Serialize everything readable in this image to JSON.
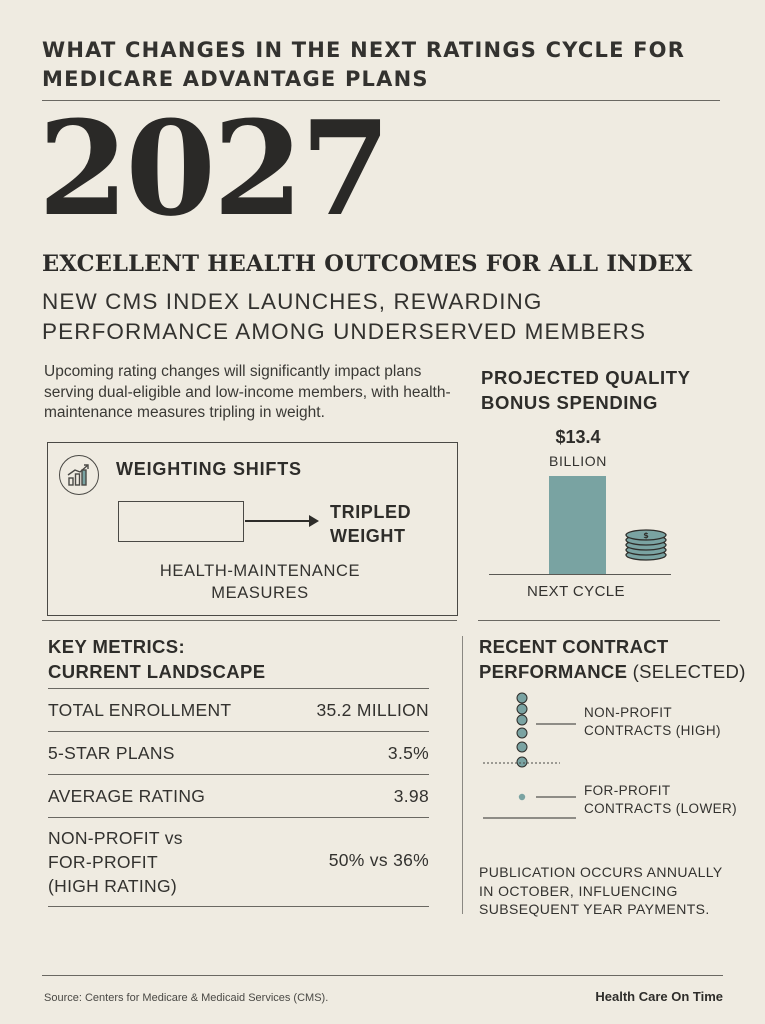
{
  "header": {
    "kicker": "WHAT CHANGES IN THE NEXT RATINGS CYCLE FOR MEDICARE ADVANTAGE PLANS",
    "year": "2027",
    "index_title": "EXCELLENT HEALTH OUTCOMES FOR ALL INDEX",
    "subhead": "NEW CMS INDEX LAUNCHES, REWARDING PERFORMANCE AMONG UNDERSERVED MEMBERS"
  },
  "intro": "Upcoming rating changes will significantly impact plans serving dual-eligible and low-income members, with health-maintenance measures tripling in weight.",
  "weighting": {
    "icon": "growth-chart-icon",
    "title": "WEIGHTING SHIFTS",
    "result_line1": "TRIPLED",
    "result_line2": "WEIGHT",
    "measure_line1": "HEALTH-MAINTENANCE",
    "measure_line2": "MEASURES"
  },
  "bonus": {
    "title_line1": "PROJECTED QUALITY",
    "title_line2": "BONUS SPENDING",
    "value_label": "$13.4",
    "unit_label": "BILLION",
    "category": "NEXT CYCLE",
    "icon": "coin-stack-icon"
  },
  "chart_data": {
    "type": "bar",
    "categories": [
      "NEXT CYCLE"
    ],
    "values": [
      13.4
    ],
    "title": "PROJECTED QUALITY BONUS SPENDING",
    "ylabel": "",
    "unit": "BILLION"
  },
  "metrics": {
    "title_line1": "KEY METRICS:",
    "title_line2": "CURRENT LANDSCAPE",
    "rows": [
      {
        "label": "TOTAL ENROLLMENT",
        "value": "35.2 MILLION"
      },
      {
        "label": "5-STAR PLANS",
        "value": "3.5%"
      },
      {
        "label": "AVERAGE RATING",
        "value": "3.98"
      },
      {
        "label_line1": "NON-PROFIT vs",
        "label_line2": "FOR-PROFIT",
        "label_line3": "(HIGH RATING)",
        "value": "50% vs 36%"
      }
    ]
  },
  "contracts": {
    "title_bold_line1": "RECENT CONTRACT",
    "title_bold_line2": "PERFORMANCE",
    "title_suffix": " (SELECTED)",
    "nonprofit_line1": "NON-PROFIT",
    "nonprofit_line2": "CONTRACTS (HIGH)",
    "forprofit_line1": "FOR-PROFIT",
    "forprofit_line2": "CONTRACTS (LOWER)",
    "dot_color": "#7aa3a2"
  },
  "publication_note": "PUBLICATION OCCURS ANNUALLY IN OCTOBER, INFLUENCING SUBSEQUENT YEAR PAYMENTS.",
  "footer": {
    "source": "Source: Centers for Medicare & Medicaid Services (CMS).",
    "brand": "Health Care On Time"
  },
  "colors": {
    "background": "#efebe1",
    "accent_teal": "#79a3a2",
    "ink": "#2c2b29"
  }
}
